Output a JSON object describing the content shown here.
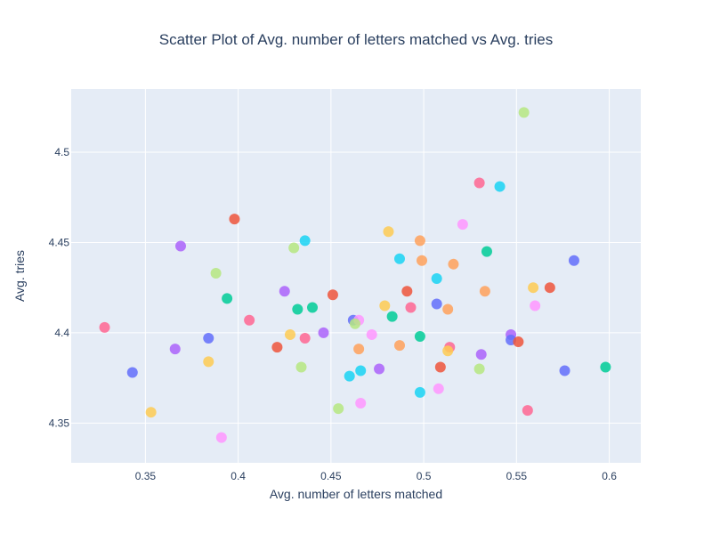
{
  "chart_data": {
    "type": "scatter",
    "title": "Scatter Plot of Avg. number of letters matched vs Avg. tries",
    "xlabel": "Avg. number of letters matched",
    "ylabel": "Avg. tries",
    "xlim": [
      0.31,
      0.617
    ],
    "ylim": [
      4.328,
      4.535
    ],
    "grid": true,
    "xticks": [
      {
        "value": 0.35,
        "label": "0.35"
      },
      {
        "value": 0.4,
        "label": "0.4"
      },
      {
        "value": 0.45,
        "label": "0.45"
      },
      {
        "value": 0.5,
        "label": "0.5"
      },
      {
        "value": 0.55,
        "label": "0.55"
      },
      {
        "value": 0.6,
        "label": "0.6"
      }
    ],
    "yticks": [
      {
        "value": 4.35,
        "label": "4.35"
      },
      {
        "value": 4.4,
        "label": "4.4"
      },
      {
        "value": 4.45,
        "label": "4.45"
      },
      {
        "value": 4.5,
        "label": "4.5"
      }
    ],
    "colors": {
      "plot_bg": "#e5ecf6",
      "grid": "#ffffff",
      "text": "#2a3f5f",
      "palette": [
        "#636efa",
        "#ef553b",
        "#00cc96",
        "#ab63fa",
        "#ffa15a",
        "#19d3f3",
        "#ff6692",
        "#b6e880",
        "#ff97ff",
        "#fecb52"
      ]
    },
    "points": [
      {
        "x": 0.554,
        "y": 4.522,
        "color": "#b6e880"
      },
      {
        "x": 0.53,
        "y": 4.483,
        "color": "#ff6692"
      },
      {
        "x": 0.541,
        "y": 4.481,
        "color": "#19d3f3"
      },
      {
        "x": 0.398,
        "y": 4.463,
        "color": "#ef553b"
      },
      {
        "x": 0.521,
        "y": 4.46,
        "color": "#ff97ff"
      },
      {
        "x": 0.481,
        "y": 4.456,
        "color": "#fecb52"
      },
      {
        "x": 0.436,
        "y": 4.451,
        "color": "#19d3f3"
      },
      {
        "x": 0.498,
        "y": 4.451,
        "color": "#ffa15a"
      },
      {
        "x": 0.369,
        "y": 4.448,
        "color": "#ab63fa"
      },
      {
        "x": 0.43,
        "y": 4.447,
        "color": "#b6e880"
      },
      {
        "x": 0.534,
        "y": 4.445,
        "color": "#00cc96"
      },
      {
        "x": 0.487,
        "y": 4.441,
        "color": "#19d3f3"
      },
      {
        "x": 0.499,
        "y": 4.44,
        "color": "#ffa15a"
      },
      {
        "x": 0.581,
        "y": 4.44,
        "color": "#636efa"
      },
      {
        "x": 0.516,
        "y": 4.438,
        "color": "#ffa15a"
      },
      {
        "x": 0.388,
        "y": 4.433,
        "color": "#b6e880"
      },
      {
        "x": 0.507,
        "y": 4.43,
        "color": "#19d3f3"
      },
      {
        "x": 0.559,
        "y": 4.425,
        "color": "#fecb52"
      },
      {
        "x": 0.568,
        "y": 4.425,
        "color": "#ef553b"
      },
      {
        "x": 0.425,
        "y": 4.423,
        "color": "#ab63fa"
      },
      {
        "x": 0.491,
        "y": 4.423,
        "color": "#ef553b"
      },
      {
        "x": 0.533,
        "y": 4.423,
        "color": "#ffa15a"
      },
      {
        "x": 0.451,
        "y": 4.421,
        "color": "#ef553b"
      },
      {
        "x": 0.394,
        "y": 4.419,
        "color": "#00cc96"
      },
      {
        "x": 0.507,
        "y": 4.416,
        "color": "#636efa"
      },
      {
        "x": 0.56,
        "y": 4.415,
        "color": "#ff97ff"
      },
      {
        "x": 0.479,
        "y": 4.415,
        "color": "#fecb52"
      },
      {
        "x": 0.493,
        "y": 4.414,
        "color": "#ff6692"
      },
      {
        "x": 0.44,
        "y": 4.414,
        "color": "#00cc96"
      },
      {
        "x": 0.432,
        "y": 4.413,
        "color": "#00cc96"
      },
      {
        "x": 0.513,
        "y": 4.413,
        "color": "#ffa15a"
      },
      {
        "x": 0.483,
        "y": 4.409,
        "color": "#00cc96"
      },
      {
        "x": 0.406,
        "y": 4.407,
        "color": "#ff6692"
      },
      {
        "x": 0.462,
        "y": 4.407,
        "color": "#636efa"
      },
      {
        "x": 0.465,
        "y": 4.407,
        "color": "#ff97ff"
      },
      {
        "x": 0.463,
        "y": 4.405,
        "color": "#b6e880"
      },
      {
        "x": 0.328,
        "y": 4.403,
        "color": "#ff6692"
      },
      {
        "x": 0.446,
        "y": 4.4,
        "color": "#ab63fa"
      },
      {
        "x": 0.428,
        "y": 4.399,
        "color": "#fecb52"
      },
      {
        "x": 0.472,
        "y": 4.399,
        "color": "#ff97ff"
      },
      {
        "x": 0.547,
        "y": 4.399,
        "color": "#ab63fa"
      },
      {
        "x": 0.498,
        "y": 4.398,
        "color": "#00cc96"
      },
      {
        "x": 0.384,
        "y": 4.397,
        "color": "#636efa"
      },
      {
        "x": 0.436,
        "y": 4.397,
        "color": "#ff6692"
      },
      {
        "x": 0.547,
        "y": 4.396,
        "color": "#636efa"
      },
      {
        "x": 0.551,
        "y": 4.395,
        "color": "#ef553b"
      },
      {
        "x": 0.487,
        "y": 4.393,
        "color": "#ffa15a"
      },
      {
        "x": 0.421,
        "y": 4.392,
        "color": "#ef553b"
      },
      {
        "x": 0.514,
        "y": 4.392,
        "color": "#ff6692"
      },
      {
        "x": 0.366,
        "y": 4.391,
        "color": "#ab63fa"
      },
      {
        "x": 0.465,
        "y": 4.391,
        "color": "#ffa15a"
      },
      {
        "x": 0.513,
        "y": 4.39,
        "color": "#fecb52"
      },
      {
        "x": 0.531,
        "y": 4.388,
        "color": "#ab63fa"
      },
      {
        "x": 0.384,
        "y": 4.384,
        "color": "#fecb52"
      },
      {
        "x": 0.434,
        "y": 4.381,
        "color": "#b6e880"
      },
      {
        "x": 0.509,
        "y": 4.381,
        "color": "#ef553b"
      },
      {
        "x": 0.598,
        "y": 4.381,
        "color": "#00cc96"
      },
      {
        "x": 0.476,
        "y": 4.38,
        "color": "#ab63fa"
      },
      {
        "x": 0.53,
        "y": 4.38,
        "color": "#b6e880"
      },
      {
        "x": 0.466,
        "y": 4.379,
        "color": "#19d3f3"
      },
      {
        "x": 0.576,
        "y": 4.379,
        "color": "#636efa"
      },
      {
        "x": 0.343,
        "y": 4.378,
        "color": "#636efa"
      },
      {
        "x": 0.46,
        "y": 4.376,
        "color": "#19d3f3"
      },
      {
        "x": 0.508,
        "y": 4.369,
        "color": "#ff97ff"
      },
      {
        "x": 0.498,
        "y": 4.367,
        "color": "#19d3f3"
      },
      {
        "x": 0.466,
        "y": 4.361,
        "color": "#ff97ff"
      },
      {
        "x": 0.454,
        "y": 4.358,
        "color": "#b6e880"
      },
      {
        "x": 0.556,
        "y": 4.357,
        "color": "#ff6692"
      },
      {
        "x": 0.353,
        "y": 4.356,
        "color": "#fecb52"
      },
      {
        "x": 0.391,
        "y": 4.342,
        "color": "#ff97ff"
      }
    ]
  }
}
